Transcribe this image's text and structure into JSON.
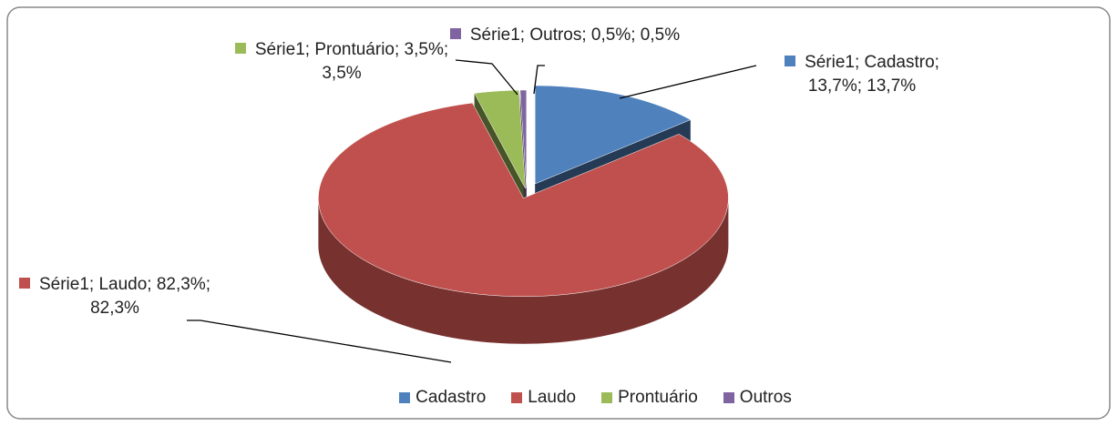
{
  "chart_data": {
    "type": "pie",
    "categories": [
      "Cadastro",
      "Laudo",
      "Prontuário",
      "Outros"
    ],
    "values": [
      13.7,
      82.3,
      3.5,
      0.5
    ],
    "value_labels": [
      "Série1; Cadastro; 13,7%; 13,7%",
      "Série1; Laudo; 82,3%; 82,3%",
      "Série1; Prontuário; 3,5%; 3,5%",
      "Série1; Outros; 0,5%; 0,5%"
    ],
    "colors": [
      "#4f81bd",
      "#c0504d",
      "#9bbb59",
      "#8064a2"
    ],
    "legend": "bottom"
  }
}
